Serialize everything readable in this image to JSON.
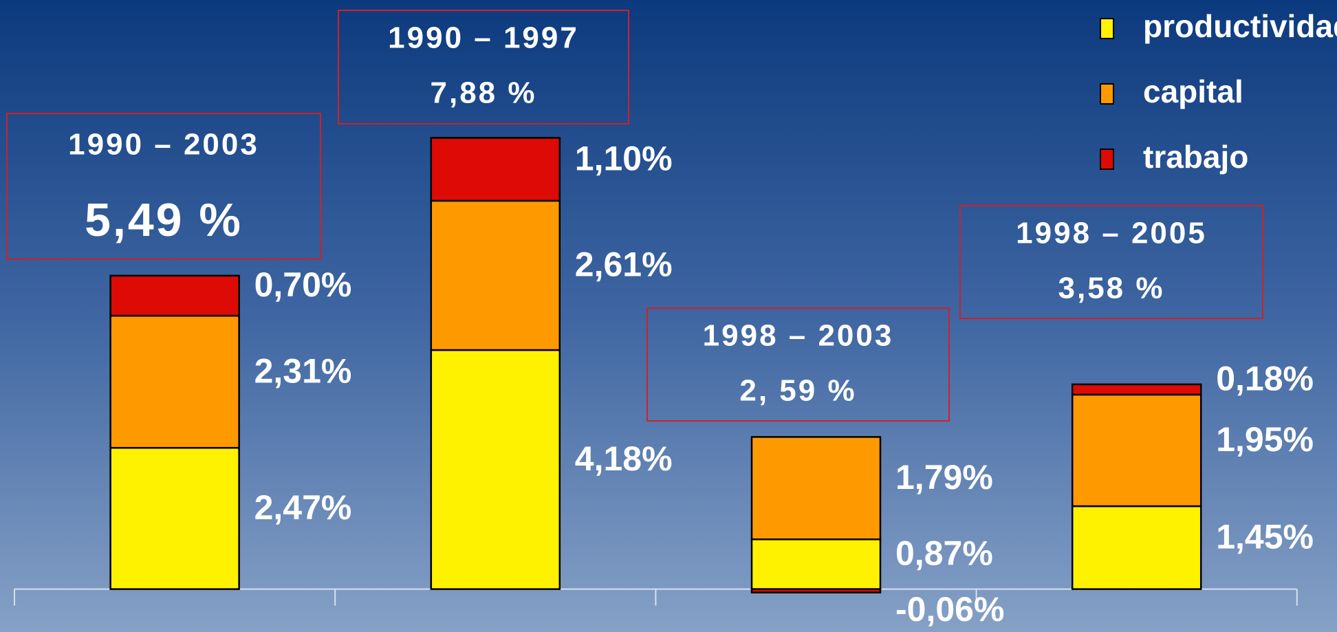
{
  "chart_data": {
    "type": "stacked_bar",
    "categories": [
      "1990 – 2003",
      "1990 – 1997",
      "1998 – 2003",
      "1998 – 2005"
    ],
    "totals": [
      "5,49 %",
      "7,88 %",
      "2, 59 %",
      "3,58 %"
    ],
    "series": [
      {
        "name": "productividad",
        "color": "#fff200",
        "values": [
          2.47,
          4.18,
          0.87,
          1.45
        ],
        "value_labels": [
          "2,47%",
          "4,18%",
          "0,87%",
          "1,45%"
        ]
      },
      {
        "name": "capital",
        "color": "#ff9900",
        "values": [
          2.31,
          2.61,
          1.79,
          1.95
        ],
        "value_labels": [
          "2,31%",
          "2,61%",
          "1,79%",
          "1,95%"
        ]
      },
      {
        "name": "trabajo",
        "color": "#dd0a06",
        "values": [
          0.7,
          1.1,
          -0.06,
          0.18
        ],
        "value_labels": [
          "0,70%",
          "1,10%",
          "-0,06%",
          "0,18%"
        ]
      }
    ],
    "ylim": [
      -0.75,
      10.3
    ],
    "legend": "top-right"
  }
}
